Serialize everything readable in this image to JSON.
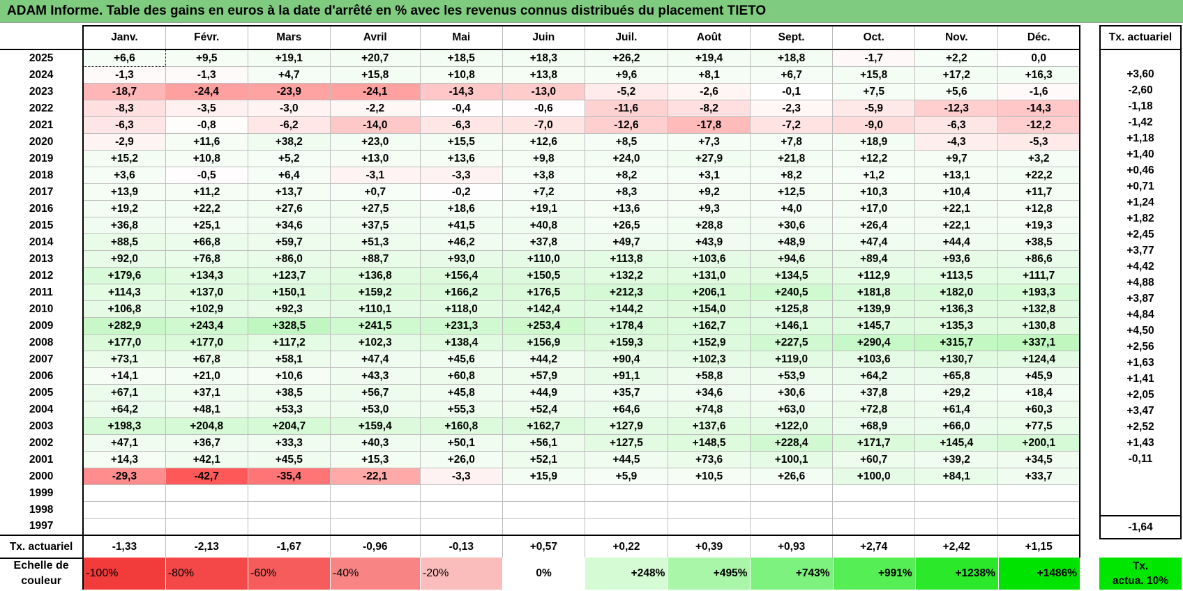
{
  "title": "ADAM Informe. Table des gains en euros à la date d'arrêté en % avec les revenus connus distribués du placement TIETO",
  "months": [
    "Janv.",
    "Févr.",
    "Mars",
    "Avril",
    "Mai",
    "Juin",
    "Juil.",
    "Août",
    "Sept.",
    "Oct.",
    "Nov.",
    "Déc."
  ],
  "act_header": "Tx. actuariel",
  "rows": [
    {
      "year": "2025",
      "values": [
        "+6,6",
        "+9,5",
        "+19,1",
        "+20,7",
        "+18,5",
        "+18,3",
        "+26,2",
        "+19,4",
        "+18,8",
        "-1,7",
        "+2,2",
        "0,0"
      ],
      "act": ""
    },
    {
      "year": "2024",
      "values": [
        "-1,3",
        "-1,3",
        "+4,7",
        "+15,8",
        "+10,8",
        "+13,8",
        "+9,6",
        "+8,1",
        "+6,7",
        "+15,8",
        "+17,2",
        "+16,3"
      ],
      "act": "+3,60"
    },
    {
      "year": "2023",
      "values": [
        "-18,7",
        "-24,4",
        "-23,9",
        "-24,1",
        "-14,3",
        "-13,0",
        "-5,2",
        "-2,6",
        "-0,1",
        "+7,5",
        "+5,6",
        "-1,6"
      ],
      "act": "-2,60"
    },
    {
      "year": "2022",
      "values": [
        "-8,3",
        "-3,5",
        "-3,0",
        "-2,2",
        "-0,4",
        "-0,6",
        "-11,6",
        "-8,2",
        "-2,3",
        "-5,9",
        "-12,3",
        "-14,3"
      ],
      "act": "-1,18"
    },
    {
      "year": "2021",
      "values": [
        "-6,3",
        "-0,8",
        "-6,2",
        "-14,0",
        "-6,3",
        "-7,0",
        "-12,6",
        "-17,8",
        "-7,2",
        "-9,0",
        "-6,3",
        "-12,2"
      ],
      "act": "-1,42"
    },
    {
      "year": "2020",
      "values": [
        "-2,9",
        "+11,6",
        "+38,2",
        "+23,0",
        "+15,5",
        "+12,6",
        "+8,5",
        "+7,3",
        "+7,8",
        "+18,9",
        "-4,3",
        "-5,3"
      ],
      "act": "+1,18"
    },
    {
      "year": "2019",
      "values": [
        "+15,2",
        "+10,8",
        "+5,2",
        "+13,0",
        "+13,6",
        "+9,8",
        "+24,0",
        "+27,9",
        "+21,8",
        "+12,2",
        "+9,7",
        "+3,2"
      ],
      "act": "+1,40"
    },
    {
      "year": "2018",
      "values": [
        "+3,6",
        "-0,5",
        "+6,4",
        "-3,1",
        "-3,3",
        "+3,8",
        "+8,2",
        "+3,1",
        "+8,2",
        "+1,2",
        "+13,1",
        "+22,2"
      ],
      "act": "+0,46"
    },
    {
      "year": "2017",
      "values": [
        "+13,9",
        "+11,2",
        "+13,7",
        "+0,7",
        "-0,2",
        "+7,2",
        "+8,3",
        "+9,2",
        "+12,5",
        "+10,3",
        "+10,4",
        "+11,7"
      ],
      "act": "+0,71"
    },
    {
      "year": "2016",
      "values": [
        "+19,2",
        "+22,2",
        "+27,6",
        "+27,5",
        "+18,6",
        "+19,1",
        "+13,6",
        "+9,3",
        "+4,0",
        "+17,0",
        "+22,1",
        "+12,8"
      ],
      "act": "+1,24"
    },
    {
      "year": "2015",
      "values": [
        "+36,8",
        "+25,1",
        "+34,6",
        "+37,5",
        "+41,5",
        "+40,8",
        "+26,5",
        "+28,8",
        "+30,6",
        "+26,4",
        "+22,1",
        "+19,3"
      ],
      "act": "+1,82"
    },
    {
      "year": "2014",
      "values": [
        "+88,5",
        "+66,8",
        "+59,7",
        "+51,3",
        "+46,2",
        "+37,8",
        "+49,7",
        "+43,9",
        "+48,9",
        "+47,4",
        "+44,4",
        "+38,5"
      ],
      "act": "+2,45"
    },
    {
      "year": "2013",
      "values": [
        "+92,0",
        "+76,8",
        "+86,0",
        "+88,7",
        "+93,0",
        "+110,0",
        "+113,8",
        "+103,6",
        "+94,6",
        "+89,4",
        "+93,6",
        "+86,6"
      ],
      "act": "+3,77"
    },
    {
      "year": "2012",
      "values": [
        "+179,6",
        "+134,3",
        "+123,7",
        "+136,8",
        "+156,4",
        "+150,5",
        "+132,2",
        "+131,0",
        "+134,5",
        "+112,9",
        "+113,5",
        "+111,7"
      ],
      "act": "+4,42"
    },
    {
      "year": "2011",
      "values": [
        "+114,3",
        "+137,0",
        "+150,1",
        "+159,2",
        "+166,2",
        "+176,5",
        "+212,3",
        "+206,1",
        "+240,5",
        "+181,8",
        "+182,0",
        "+193,3"
      ],
      "act": "+4,88"
    },
    {
      "year": "2010",
      "values": [
        "+106,8",
        "+102,9",
        "+92,3",
        "+110,1",
        "+118,0",
        "+142,4",
        "+144,2",
        "+154,0",
        "+125,8",
        "+139,9",
        "+136,3",
        "+132,8"
      ],
      "act": "+3,87"
    },
    {
      "year": "2009",
      "values": [
        "+282,9",
        "+243,4",
        "+328,5",
        "+241,5",
        "+231,3",
        "+253,4",
        "+178,4",
        "+162,7",
        "+146,1",
        "+145,7",
        "+135,3",
        "+130,8"
      ],
      "act": "+4,84"
    },
    {
      "year": "2008",
      "values": [
        "+177,0",
        "+177,0",
        "+117,2",
        "+102,3",
        "+138,4",
        "+156,9",
        "+159,3",
        "+152,9",
        "+227,5",
        "+290,4",
        "+315,7",
        "+337,1"
      ],
      "act": "+4,50"
    },
    {
      "year": "2007",
      "values": [
        "+73,1",
        "+67,8",
        "+58,1",
        "+47,4",
        "+45,6",
        "+44,2",
        "+90,4",
        "+102,3",
        "+119,0",
        "+103,6",
        "+130,7",
        "+124,4"
      ],
      "act": "+2,56"
    },
    {
      "year": "2006",
      "values": [
        "+14,1",
        "+21,0",
        "+10,6",
        "+43,3",
        "+60,8",
        "+57,9",
        "+91,1",
        "+58,8",
        "+53,9",
        "+64,2",
        "+65,8",
        "+45,9"
      ],
      "act": "+1,63"
    },
    {
      "year": "2005",
      "values": [
        "+67,1",
        "+37,1",
        "+38,5",
        "+56,7",
        "+45,8",
        "+44,9",
        "+35,7",
        "+34,6",
        "+30,6",
        "+37,8",
        "+29,2",
        "+18,4"
      ],
      "act": "+1,41"
    },
    {
      "year": "2004",
      "values": [
        "+64,2",
        "+48,1",
        "+53,3",
        "+53,0",
        "+55,3",
        "+52,4",
        "+64,6",
        "+74,8",
        "+63,0",
        "+72,8",
        "+61,4",
        "+60,3"
      ],
      "act": "+2,05"
    },
    {
      "year": "2003",
      "values": [
        "+198,3",
        "+204,8",
        "+204,7",
        "+159,4",
        "+160,8",
        "+162,7",
        "+127,9",
        "+137,6",
        "+122,0",
        "+68,9",
        "+66,0",
        "+77,5"
      ],
      "act": "+3,47"
    },
    {
      "year": "2002",
      "values": [
        "+47,1",
        "+36,7",
        "+33,3",
        "+40,3",
        "+50,1",
        "+56,1",
        "+127,5",
        "+148,5",
        "+228,4",
        "+171,7",
        "+145,4",
        "+200,1"
      ],
      "act": "+2,52"
    },
    {
      "year": "2001",
      "values": [
        "+14,3",
        "+42,1",
        "+45,5",
        "+15,3",
        "+26,0",
        "+52,1",
        "+44,5",
        "+73,6",
        "+100,1",
        "+60,7",
        "+39,2",
        "+34,5"
      ],
      "act": "+1,43"
    },
    {
      "year": "2000",
      "values": [
        "-29,3",
        "-42,7",
        "-35,4",
        "-22,1",
        "-3,3",
        "+15,9",
        "+5,9",
        "+10,5",
        "+26,6",
        "+100,0",
        "+84,1",
        "+33,7"
      ],
      "act": "-0,11"
    },
    {
      "year": "1999",
      "values": [
        "",
        "",
        "",
        "",
        "",
        "",
        "",
        "",
        "",
        "",
        "",
        ""
      ],
      "act": ""
    },
    {
      "year": "1998",
      "values": [
        "",
        "",
        "",
        "",
        "",
        "",
        "",
        "",
        "",
        "",
        "",
        ""
      ],
      "act": ""
    },
    {
      "year": "1997",
      "values": [
        "",
        "",
        "",
        "",
        "",
        "",
        "",
        "",
        "",
        "",
        "",
        ""
      ],
      "act": ""
    }
  ],
  "actuarial_row": {
    "label": "Tx. actuariel",
    "values": [
      "-1,33",
      "-2,13",
      "-1,67",
      "-0,96",
      "-0,13",
      "+0,57",
      "+0,22",
      "+0,39",
      "+0,93",
      "+2,74",
      "+2,42",
      "+1,15"
    ],
    "total": "-1,64"
  },
  "scale": {
    "label_line1": "Echelle de",
    "label_line2": "couleur",
    "cells": [
      {
        "text": "-100%",
        "color": "#f23b3b",
        "kind": "neg"
      },
      {
        "text": "-80%",
        "color": "#f44848",
        "kind": "neg"
      },
      {
        "text": "-60%",
        "color": "#f65c5c",
        "kind": "neg"
      },
      {
        "text": "-40%",
        "color": "#f88484",
        "kind": "neg"
      },
      {
        "text": "-20%",
        "color": "#fbbcbc",
        "kind": "neg"
      },
      {
        "text": "0%",
        "color": "#ffffff",
        "kind": "zero"
      },
      {
        "text": "+248%",
        "color": "#d4fbd4",
        "kind": "pos"
      },
      {
        "text": "+495%",
        "color": "#a9f6a9",
        "kind": "pos"
      },
      {
        "text": "+743%",
        "color": "#7ef27e",
        "kind": "pos"
      },
      {
        "text": "+991%",
        "color": "#55ee55",
        "kind": "pos"
      },
      {
        "text": "+1238%",
        "color": "#2be82b",
        "kind": "pos"
      },
      {
        "text": "+1486%",
        "color": "#00e300",
        "kind": "pos"
      }
    ],
    "act_line1": "Tx.",
    "act_line2": "actua. 10%"
  }
}
